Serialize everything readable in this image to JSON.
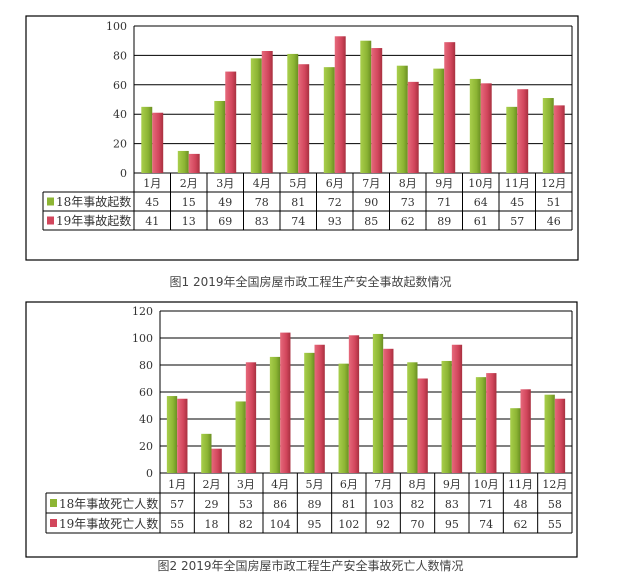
{
  "colors": {
    "series1": "#8db534",
    "series2": "#d2465c",
    "grid": "#000000"
  },
  "chart_data": [
    {
      "type": "bar",
      "title": "图1 2019年全国房屋市政工程生产安全事故起数情况",
      "categories": [
        "1月",
        "2月",
        "3月",
        "4月",
        "5月",
        "6月",
        "7月",
        "8月",
        "9月",
        "10月",
        "11月",
        "12月"
      ],
      "series": [
        {
          "name": "18年事故起数",
          "values": [
            45,
            15,
            49,
            78,
            81,
            72,
            90,
            73,
            71,
            64,
            45,
            51
          ]
        },
        {
          "name": "19年事故起数",
          "values": [
            41,
            13,
            69,
            83,
            74,
            93,
            85,
            62,
            89,
            61,
            57,
            46
          ]
        }
      ],
      "yticks": [
        0,
        20,
        40,
        60,
        80,
        100
      ],
      "ylim": [
        0,
        100
      ],
      "grid": true,
      "legend": "data-table"
    },
    {
      "type": "bar",
      "title": "图2 2019年全国房屋市政工程生产安全事故死亡人数情况",
      "categories": [
        "1月",
        "2月",
        "3月",
        "4月",
        "5月",
        "6月",
        "7月",
        "8月",
        "9月",
        "10月",
        "11月",
        "12月"
      ],
      "series": [
        {
          "name": "18年事故死亡人数",
          "values": [
            57,
            29,
            53,
            86,
            89,
            81,
            103,
            82,
            83,
            71,
            48,
            58
          ]
        },
        {
          "name": "19年事故死亡人数",
          "values": [
            55,
            18,
            82,
            104,
            95,
            102,
            92,
            70,
            95,
            74,
            62,
            55
          ]
        }
      ],
      "yticks": [
        0,
        20,
        40,
        60,
        80,
        100,
        120
      ],
      "ylim": [
        0,
        120
      ],
      "grid": true,
      "legend": "data-table"
    }
  ]
}
